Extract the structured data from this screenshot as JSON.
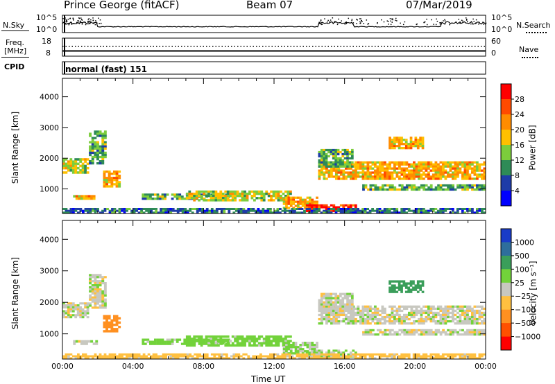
{
  "header": {
    "station": "Prince George (fitACF)",
    "beam": "Beam 07",
    "date": "07/Mar/2019"
  },
  "panels": {
    "nsky": {
      "left_label": "N.Sky",
      "left_ticks": [
        "10^5",
        "10^0"
      ],
      "right_label": "N.Search",
      "right_ticks": [
        "10^5",
        "10^0"
      ]
    },
    "freq": {
      "left_label_line1": "Freq.",
      "left_label_line2": "[MHz]",
      "left_ticks": [
        "18",
        "8"
      ],
      "right_label": "Nave",
      "right_ticks": [
        "60",
        "0"
      ]
    },
    "cpid": {
      "label": "CPID",
      "value": "normal (fast) 151"
    }
  },
  "colorbars": {
    "power": {
      "title": "Power [dB]",
      "ticks": [
        "28",
        "24",
        "20",
        "16",
        "12",
        "8",
        "4"
      ],
      "colors": [
        "#ff0000",
        "#ff4a00",
        "#ff8c00",
        "#ffc000",
        "#7ccd3c",
        "#2e8b57",
        "#1e3ca8",
        "#0000ff"
      ]
    },
    "velocity": {
      "title": "Velocity [m s⁻¹]",
      "ticks": [
        "1000",
        "500",
        "100",
        "25",
        "−25",
        "−100",
        "−500",
        "−1000"
      ],
      "colors": [
        "#1a3cc8",
        "#2e6e9c",
        "#3a9e5a",
        "#72d23a",
        "#c8c8c0",
        "#ffc040",
        "#ff9020",
        "#ff5000",
        "#ff0000"
      ]
    }
  },
  "chart_data": {
    "type": "heatmap",
    "xlabel": "Time UT",
    "x_ticks": [
      "00:00",
      "04:00",
      "08:00",
      "12:00",
      "16:00",
      "20:00",
      "00:00"
    ],
    "ylabel": "Slant Range [km]",
    "y_ticks": [
      1000,
      2000,
      3000,
      4000
    ],
    "ylim": [
      200,
      4600
    ],
    "xlim_hours": [
      0,
      24
    ],
    "power_regions": [
      {
        "t0": 0.0,
        "t1": 1.5,
        "r0": 1500,
        "r1": 2000,
        "level": 16
      },
      {
        "t0": 1.5,
        "t1": 2.5,
        "r0": 1800,
        "r1": 2900,
        "level": 12
      },
      {
        "t0": 2.3,
        "t1": 3.3,
        "r0": 1050,
        "r1": 1600,
        "level": 20
      },
      {
        "t0": 0.6,
        "t1": 2.0,
        "r0": 650,
        "r1": 800,
        "level": 20
      },
      {
        "t0": 4.5,
        "t1": 9.5,
        "r0": 650,
        "r1": 850,
        "level": 12
      },
      {
        "t0": 7.0,
        "t1": 13.0,
        "r0": 600,
        "r1": 950,
        "level": 16
      },
      {
        "t0": 12.5,
        "t1": 14.5,
        "r0": 350,
        "r1": 750,
        "level": 20
      },
      {
        "t0": 13.8,
        "t1": 16.7,
        "r0": 250,
        "r1": 500,
        "level": 28
      },
      {
        "t0": 14.5,
        "t1": 24.0,
        "r0": 1300,
        "r1": 1900,
        "level": 20
      },
      {
        "t0": 14.5,
        "t1": 16.5,
        "r0": 1700,
        "r1": 2300,
        "level": 12
      },
      {
        "t0": 17.0,
        "t1": 24.0,
        "r0": 950,
        "r1": 1150,
        "level": 12
      },
      {
        "t0": 18.5,
        "t1": 20.5,
        "r0": 2300,
        "r1": 2700,
        "level": 20
      },
      {
        "t0": 0.0,
        "t1": 24.0,
        "r0": 200,
        "r1": 380,
        "level": 8
      }
    ],
    "velocity_regions": [
      {
        "t0": 0.0,
        "t1": 1.5,
        "r0": 1500,
        "r1": 2000,
        "level": 0
      },
      {
        "t0": 1.5,
        "t1": 2.5,
        "r0": 1800,
        "r1": 2900,
        "level": 0
      },
      {
        "t0": 2.3,
        "t1": 3.3,
        "r0": 1050,
        "r1": 1600,
        "level": -300
      },
      {
        "t0": 0.6,
        "t1": 2.0,
        "r0": 650,
        "r1": 800,
        "level": 0
      },
      {
        "t0": 4.5,
        "t1": 9.5,
        "r0": 650,
        "r1": 850,
        "level": 60
      },
      {
        "t0": 7.0,
        "t1": 13.0,
        "r0": 600,
        "r1": 950,
        "level": 60
      },
      {
        "t0": 12.5,
        "t1": 14.5,
        "r0": 350,
        "r1": 750,
        "level": 40
      },
      {
        "t0": 13.8,
        "t1": 16.7,
        "r0": 250,
        "r1": 500,
        "level": 40
      },
      {
        "t0": 14.5,
        "t1": 24.0,
        "r0": 1300,
        "r1": 1900,
        "level": 0
      },
      {
        "t0": 14.5,
        "t1": 16.5,
        "r0": 1700,
        "r1": 2300,
        "level": 0
      },
      {
        "t0": 17.0,
        "t1": 24.0,
        "r0": 950,
        "r1": 1150,
        "level": 0
      },
      {
        "t0": 18.5,
        "t1": 20.5,
        "r0": 2300,
        "r1": 2700,
        "level": 200
      },
      {
        "t0": 0.0,
        "t1": 24.0,
        "r0": 200,
        "r1": 380,
        "level": -60
      }
    ]
  }
}
